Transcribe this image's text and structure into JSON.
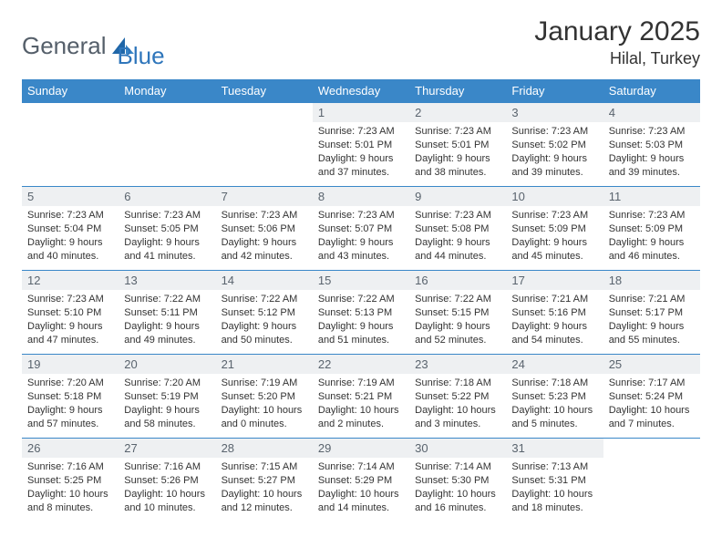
{
  "brand": {
    "word1": "General",
    "word2": "Blue"
  },
  "title": "January 2025",
  "location": "Hilal, Turkey",
  "colors": {
    "header_bg": "#3a87c8",
    "header_text": "#ffffff",
    "daynum_bg": "#eef0f2",
    "daynum_text": "#5a646e",
    "border": "#3a87c8",
    "logo_gray": "#555f6a",
    "logo_blue": "#2f76bb"
  },
  "day_names": [
    "Sunday",
    "Monday",
    "Tuesday",
    "Wednesday",
    "Thursday",
    "Friday",
    "Saturday"
  ],
  "weeks": [
    [
      null,
      null,
      null,
      {
        "n": "1",
        "sr": "Sunrise: 7:23 AM",
        "ss": "Sunset: 5:01 PM",
        "d1": "Daylight: 9 hours",
        "d2": "and 37 minutes."
      },
      {
        "n": "2",
        "sr": "Sunrise: 7:23 AM",
        "ss": "Sunset: 5:01 PM",
        "d1": "Daylight: 9 hours",
        "d2": "and 38 minutes."
      },
      {
        "n": "3",
        "sr": "Sunrise: 7:23 AM",
        "ss": "Sunset: 5:02 PM",
        "d1": "Daylight: 9 hours",
        "d2": "and 39 minutes."
      },
      {
        "n": "4",
        "sr": "Sunrise: 7:23 AM",
        "ss": "Sunset: 5:03 PM",
        "d1": "Daylight: 9 hours",
        "d2": "and 39 minutes."
      }
    ],
    [
      {
        "n": "5",
        "sr": "Sunrise: 7:23 AM",
        "ss": "Sunset: 5:04 PM",
        "d1": "Daylight: 9 hours",
        "d2": "and 40 minutes."
      },
      {
        "n": "6",
        "sr": "Sunrise: 7:23 AM",
        "ss": "Sunset: 5:05 PM",
        "d1": "Daylight: 9 hours",
        "d2": "and 41 minutes."
      },
      {
        "n": "7",
        "sr": "Sunrise: 7:23 AM",
        "ss": "Sunset: 5:06 PM",
        "d1": "Daylight: 9 hours",
        "d2": "and 42 minutes."
      },
      {
        "n": "8",
        "sr": "Sunrise: 7:23 AM",
        "ss": "Sunset: 5:07 PM",
        "d1": "Daylight: 9 hours",
        "d2": "and 43 minutes."
      },
      {
        "n": "9",
        "sr": "Sunrise: 7:23 AM",
        "ss": "Sunset: 5:08 PM",
        "d1": "Daylight: 9 hours",
        "d2": "and 44 minutes."
      },
      {
        "n": "10",
        "sr": "Sunrise: 7:23 AM",
        "ss": "Sunset: 5:09 PM",
        "d1": "Daylight: 9 hours",
        "d2": "and 45 minutes."
      },
      {
        "n": "11",
        "sr": "Sunrise: 7:23 AM",
        "ss": "Sunset: 5:09 PM",
        "d1": "Daylight: 9 hours",
        "d2": "and 46 minutes."
      }
    ],
    [
      {
        "n": "12",
        "sr": "Sunrise: 7:23 AM",
        "ss": "Sunset: 5:10 PM",
        "d1": "Daylight: 9 hours",
        "d2": "and 47 minutes."
      },
      {
        "n": "13",
        "sr": "Sunrise: 7:22 AM",
        "ss": "Sunset: 5:11 PM",
        "d1": "Daylight: 9 hours",
        "d2": "and 49 minutes."
      },
      {
        "n": "14",
        "sr": "Sunrise: 7:22 AM",
        "ss": "Sunset: 5:12 PM",
        "d1": "Daylight: 9 hours",
        "d2": "and 50 minutes."
      },
      {
        "n": "15",
        "sr": "Sunrise: 7:22 AM",
        "ss": "Sunset: 5:13 PM",
        "d1": "Daylight: 9 hours",
        "d2": "and 51 minutes."
      },
      {
        "n": "16",
        "sr": "Sunrise: 7:22 AM",
        "ss": "Sunset: 5:15 PM",
        "d1": "Daylight: 9 hours",
        "d2": "and 52 minutes."
      },
      {
        "n": "17",
        "sr": "Sunrise: 7:21 AM",
        "ss": "Sunset: 5:16 PM",
        "d1": "Daylight: 9 hours",
        "d2": "and 54 minutes."
      },
      {
        "n": "18",
        "sr": "Sunrise: 7:21 AM",
        "ss": "Sunset: 5:17 PM",
        "d1": "Daylight: 9 hours",
        "d2": "and 55 minutes."
      }
    ],
    [
      {
        "n": "19",
        "sr": "Sunrise: 7:20 AM",
        "ss": "Sunset: 5:18 PM",
        "d1": "Daylight: 9 hours",
        "d2": "and 57 minutes."
      },
      {
        "n": "20",
        "sr": "Sunrise: 7:20 AM",
        "ss": "Sunset: 5:19 PM",
        "d1": "Daylight: 9 hours",
        "d2": "and 58 minutes."
      },
      {
        "n": "21",
        "sr": "Sunrise: 7:19 AM",
        "ss": "Sunset: 5:20 PM",
        "d1": "Daylight: 10 hours",
        "d2": "and 0 minutes."
      },
      {
        "n": "22",
        "sr": "Sunrise: 7:19 AM",
        "ss": "Sunset: 5:21 PM",
        "d1": "Daylight: 10 hours",
        "d2": "and 2 minutes."
      },
      {
        "n": "23",
        "sr": "Sunrise: 7:18 AM",
        "ss": "Sunset: 5:22 PM",
        "d1": "Daylight: 10 hours",
        "d2": "and 3 minutes."
      },
      {
        "n": "24",
        "sr": "Sunrise: 7:18 AM",
        "ss": "Sunset: 5:23 PM",
        "d1": "Daylight: 10 hours",
        "d2": "and 5 minutes."
      },
      {
        "n": "25",
        "sr": "Sunrise: 7:17 AM",
        "ss": "Sunset: 5:24 PM",
        "d1": "Daylight: 10 hours",
        "d2": "and 7 minutes."
      }
    ],
    [
      {
        "n": "26",
        "sr": "Sunrise: 7:16 AM",
        "ss": "Sunset: 5:25 PM",
        "d1": "Daylight: 10 hours",
        "d2": "and 8 minutes."
      },
      {
        "n": "27",
        "sr": "Sunrise: 7:16 AM",
        "ss": "Sunset: 5:26 PM",
        "d1": "Daylight: 10 hours",
        "d2": "and 10 minutes."
      },
      {
        "n": "28",
        "sr": "Sunrise: 7:15 AM",
        "ss": "Sunset: 5:27 PM",
        "d1": "Daylight: 10 hours",
        "d2": "and 12 minutes."
      },
      {
        "n": "29",
        "sr": "Sunrise: 7:14 AM",
        "ss": "Sunset: 5:29 PM",
        "d1": "Daylight: 10 hours",
        "d2": "and 14 minutes."
      },
      {
        "n": "30",
        "sr": "Sunrise: 7:14 AM",
        "ss": "Sunset: 5:30 PM",
        "d1": "Daylight: 10 hours",
        "d2": "and 16 minutes."
      },
      {
        "n": "31",
        "sr": "Sunrise: 7:13 AM",
        "ss": "Sunset: 5:31 PM",
        "d1": "Daylight: 10 hours",
        "d2": "and 18 minutes."
      },
      null
    ]
  ]
}
